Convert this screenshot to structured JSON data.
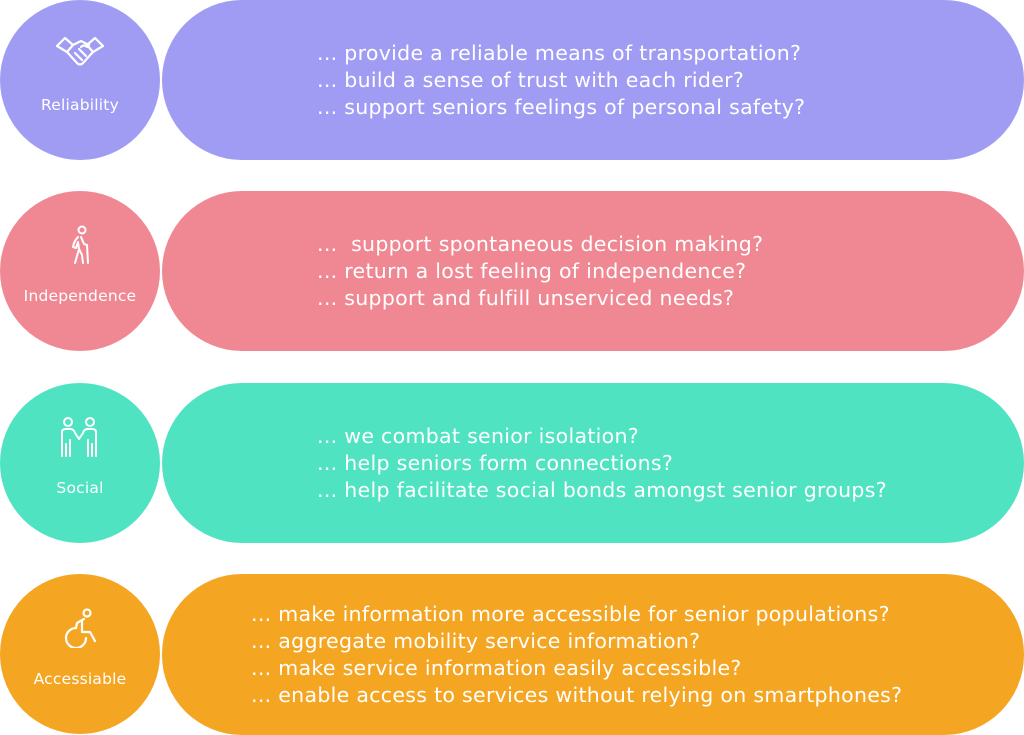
{
  "colors": {
    "reliability": "#a19cf3",
    "independence": "#f08893",
    "social": "#50e3c2",
    "accessible": "#f4a623",
    "text": "#ffffff"
  },
  "rows": [
    {
      "label": "Reliability",
      "icon": "handshake-icon",
      "lines": [
        "... provide a reliable means of transportation?",
        "... build a sense of trust with each rider?",
        "... support seniors feelings of personal safety?"
      ]
    },
    {
      "label": "Independence",
      "icon": "elderly-person-icon",
      "lines": [
        "...  support spontaneous decision making?",
        "... return a lost feeling of independence?",
        "... support and fulfill unserviced needs?"
      ]
    },
    {
      "label": "Social",
      "icon": "people-holding-hands-icon",
      "lines": [
        "... we combat senior isolation?",
        "... help seniors form connections?",
        "... help facilitate social bonds amongst senior groups?"
      ]
    },
    {
      "label": "Accessiable",
      "icon": "wheelchair-icon",
      "lines": [
        "... make information more accessible for senior populations?",
        "... aggregate mobility service information?",
        "... make service information easily accessible?",
        "... enable access to services without relying on smartphones?"
      ]
    }
  ]
}
